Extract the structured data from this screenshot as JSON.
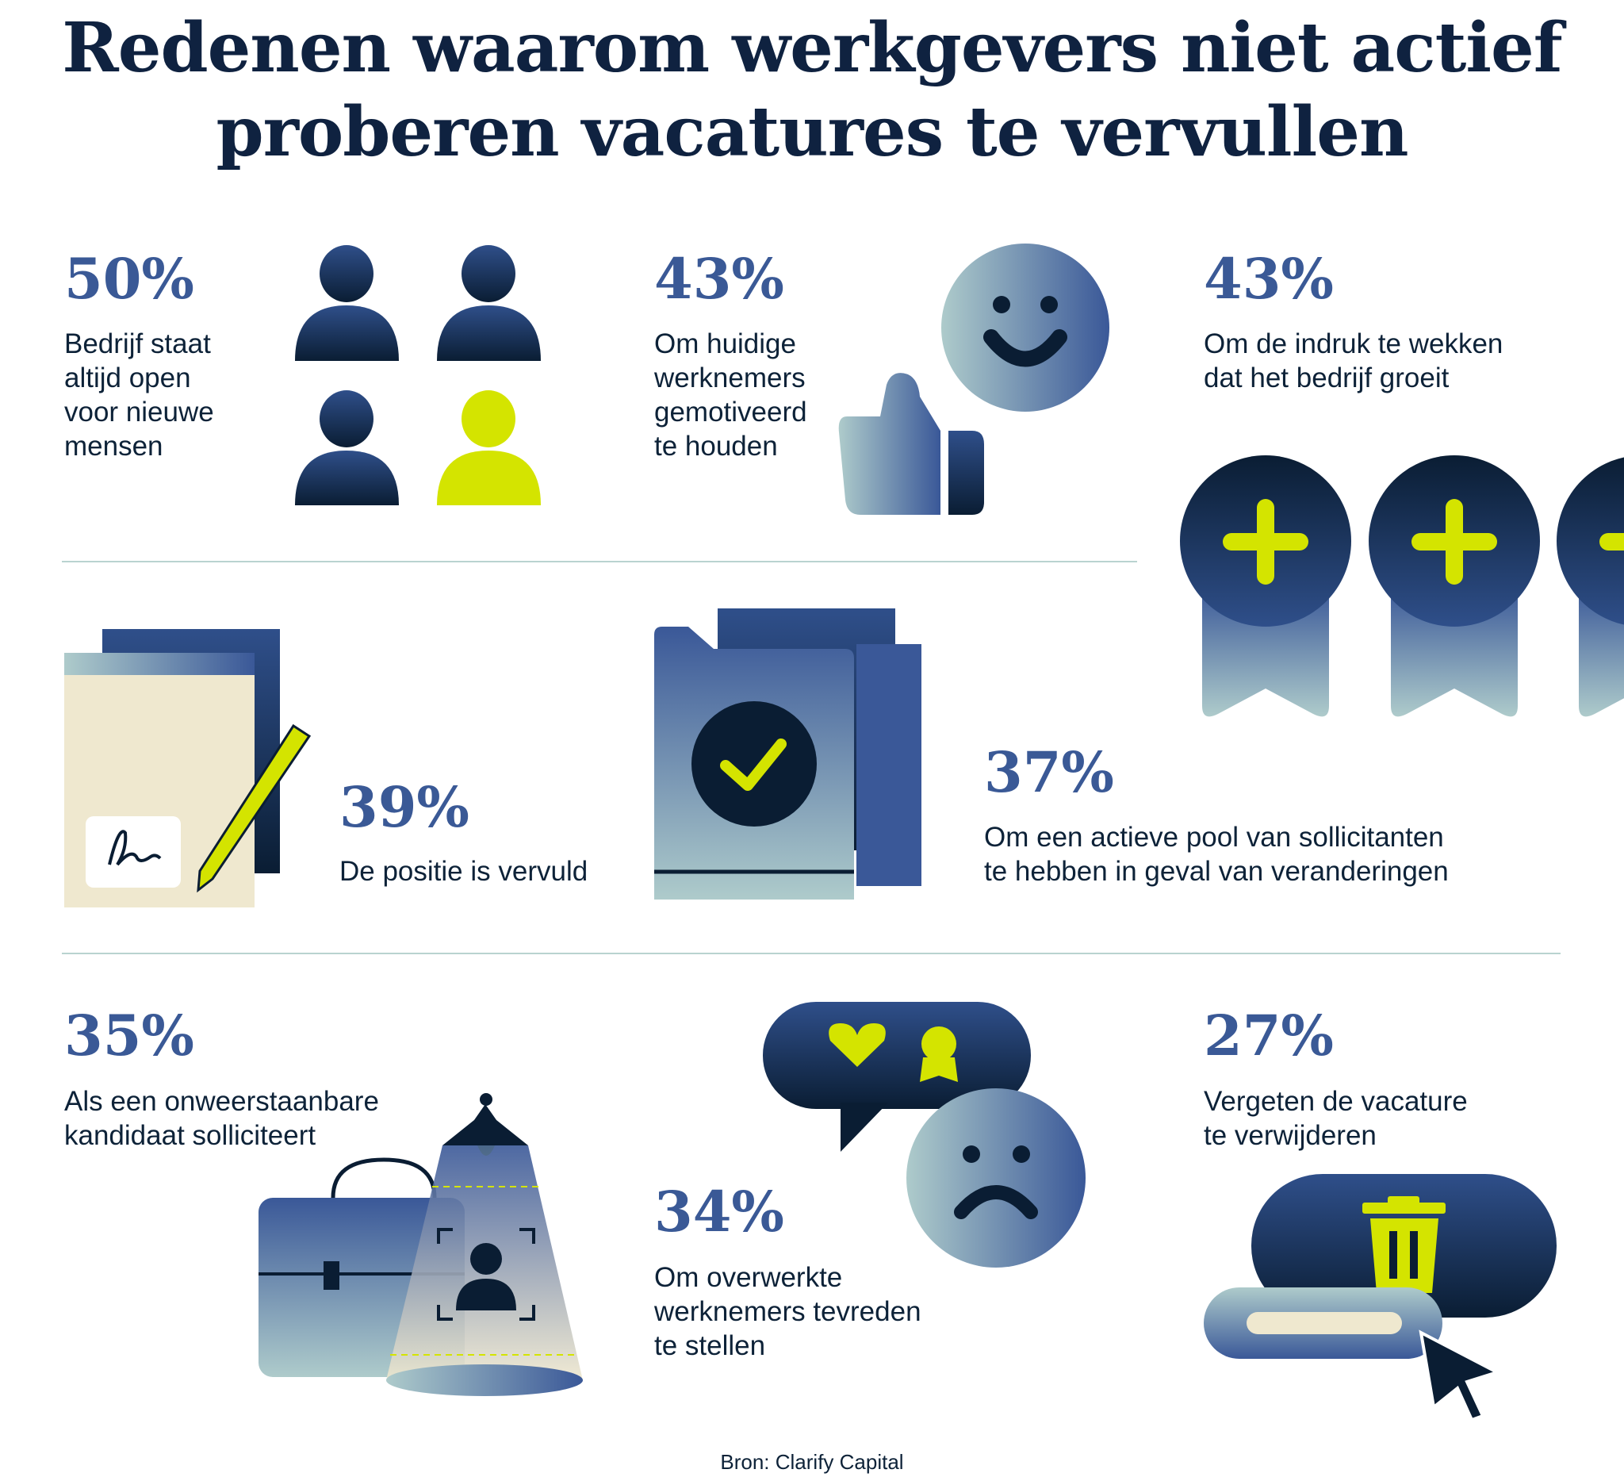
{
  "title": {
    "line1": "Redenen waarom werkgevers niet actief",
    "line2": "proberen vacatures te vervullen"
  },
  "stats": [
    {
      "value": "50%",
      "text": "Bedrijf staat\naltijd open\nvoor nieuwe\nmensen",
      "icon": "people-icon"
    },
    {
      "value": "43%",
      "text": "Om huidige\nwerknemers\ngemotiveerd\nte houden",
      "icon": "smiley-thumbs-up-icon"
    },
    {
      "value": "43%",
      "text": "Om de indruk te wekken\ndat het bedrijf groeit",
      "icon": "plus-medals-icon"
    },
    {
      "value": "39%",
      "text": "De positie is vervuld",
      "icon": "signed-document-icon"
    },
    {
      "value": "37%",
      "text": "Om een actieve pool van sollicitanten\nte hebben in geval van veranderingen",
      "icon": "checked-folder-icon"
    },
    {
      "value": "35%",
      "text": "Als een onweerstaanbare\nkandidaat solliciteert",
      "icon": "briefcase-spotlight-icon"
    },
    {
      "value": "34%",
      "text": "Om overwerkte\nwerknemers tevreden\nte stellen",
      "icon": "chat-sad-face-icon"
    },
    {
      "value": "27%",
      "text": "Vergeten de vacature\nte verwijderen",
      "icon": "trash-button-cursor-icon"
    }
  ],
  "source": "Bron: Clarify Capital",
  "colors": {
    "navy": "#0f2240",
    "accent_blue": "#3a5996",
    "lime": "#d4e400",
    "divider": "#b9d3d0"
  }
}
